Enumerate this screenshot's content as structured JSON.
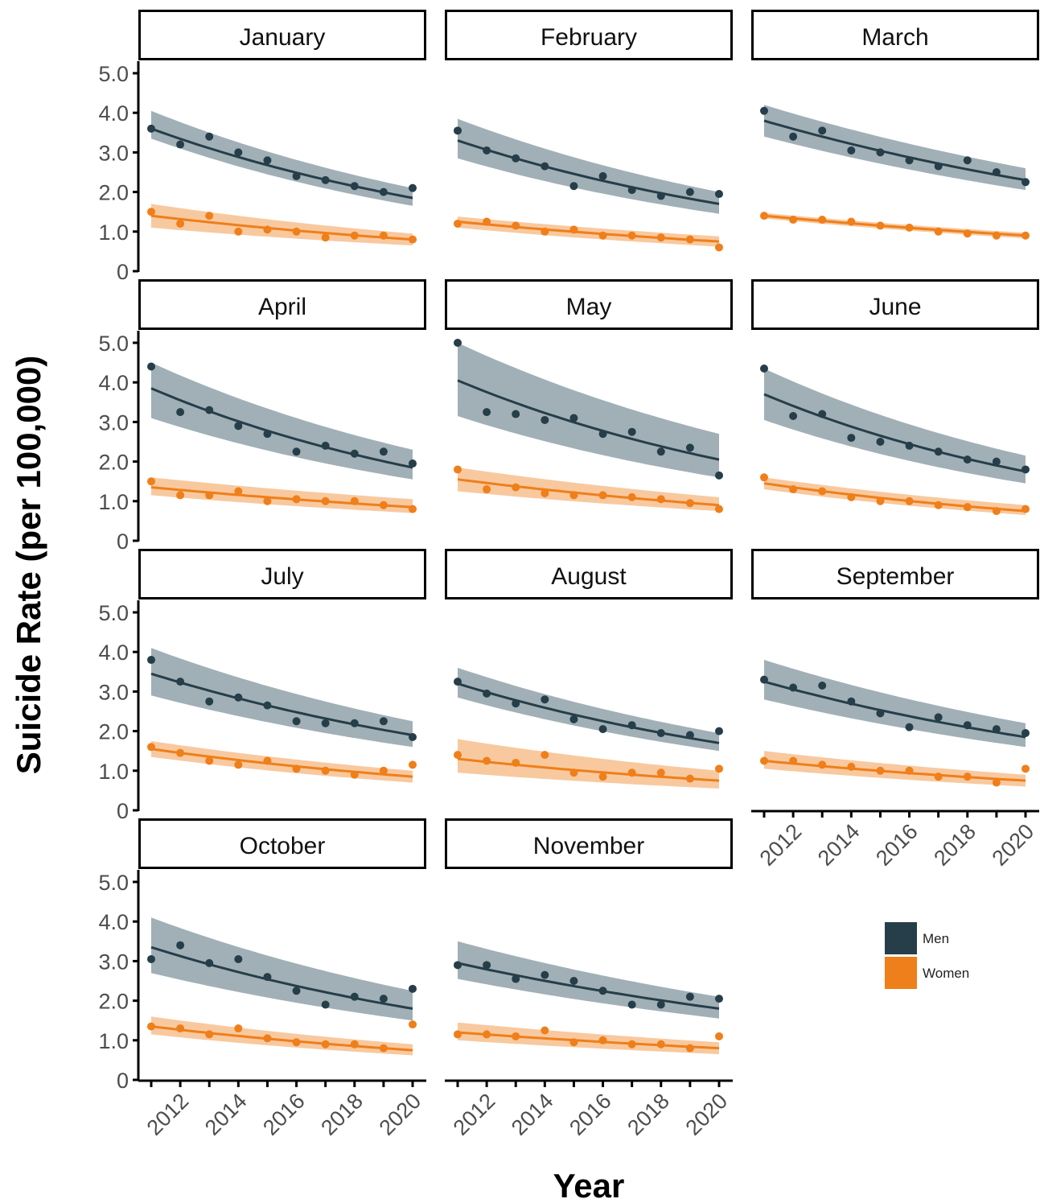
{
  "chart_data": {
    "type": "scatter",
    "facet": "month",
    "xlabel": "Year",
    "ylabel": "Suicide Rate (per 100,000)",
    "x_ticks": [
      2012,
      2014,
      2016,
      2018,
      2020
    ],
    "y_ticks": [
      "0",
      "1.0",
      "2.0",
      "3.0",
      "4.0",
      "5.0"
    ],
    "ylim": [
      0,
      5
    ],
    "xlim": [
      2011,
      2020
    ],
    "grid": false,
    "legend_position": "right",
    "x": [
      2011,
      2012,
      2013,
      2014,
      2015,
      2016,
      2017,
      2018,
      2019,
      2020
    ],
    "series": [
      {
        "name": "Men",
        "color": "#263e49",
        "band_color": "#8a9ca4"
      },
      {
        "name": "Women",
        "color": "#ef7f1a",
        "band_color": "#f7bf8e"
      }
    ],
    "panels": [
      {
        "month": "January",
        "men": [
          3.6,
          3.2,
          3.4,
          3.0,
          2.8,
          2.4,
          2.3,
          2.15,
          2.0,
          2.1
        ],
        "men_fit": [
          3.6,
          1.85
        ],
        "men_band": [
          [
            3.35,
            4.05
          ],
          [
            1.65,
            2.1
          ]
        ],
        "women": [
          1.5,
          1.2,
          1.4,
          1.0,
          1.05,
          1.0,
          0.85,
          0.9,
          0.9,
          0.8
        ],
        "women_fit": [
          1.4,
          0.8
        ],
        "women_band": [
          [
            1.1,
            1.7
          ],
          [
            0.65,
            0.95
          ]
        ]
      },
      {
        "month": "February",
        "men": [
          3.55,
          3.05,
          2.85,
          2.65,
          2.15,
          2.4,
          2.05,
          1.9,
          2.0,
          1.95
        ],
        "men_fit": [
          3.3,
          1.7
        ],
        "men_band": [
          [
            2.85,
            3.85
          ],
          [
            1.45,
            2.0
          ]
        ],
        "women": [
          1.2,
          1.25,
          1.15,
          1.0,
          1.05,
          0.9,
          0.9,
          0.85,
          0.8,
          0.6
        ],
        "women_fit": [
          1.25,
          0.75
        ],
        "women_band": [
          [
            1.1,
            1.38
          ],
          [
            0.62,
            0.88
          ]
        ]
      },
      {
        "month": "March",
        "men": [
          4.05,
          3.4,
          3.55,
          3.05,
          3.0,
          2.8,
          2.65,
          2.8,
          2.5,
          2.25
        ],
        "men_fit": [
          3.8,
          2.3
        ],
        "men_band": [
          [
            3.4,
            4.2
          ],
          [
            2.05,
            2.6
          ]
        ],
        "women": [
          1.4,
          1.3,
          1.3,
          1.25,
          1.15,
          1.1,
          1.0,
          0.95,
          0.9,
          0.9
        ],
        "women_fit": [
          1.4,
          0.9
        ],
        "women_band": [
          [
            1.33,
            1.47
          ],
          [
            0.83,
            0.97
          ]
        ]
      },
      {
        "month": "April",
        "men": [
          4.4,
          3.25,
          3.3,
          2.9,
          2.7,
          2.25,
          2.4,
          2.2,
          2.25,
          1.95
        ],
        "men_fit": [
          3.85,
          1.85
        ],
        "men_band": [
          [
            3.1,
            4.5
          ],
          [
            1.55,
            2.3
          ]
        ],
        "women": [
          1.5,
          1.15,
          1.15,
          1.25,
          1.0,
          1.05,
          1.0,
          1.0,
          0.9,
          0.8
        ],
        "women_fit": [
          1.35,
          0.85
        ],
        "women_band": [
          [
            1.15,
            1.6
          ],
          [
            0.7,
            1.05
          ]
        ]
      },
      {
        "month": "May",
        "men": [
          5.0,
          3.25,
          3.2,
          3.05,
          3.1,
          2.7,
          2.75,
          2.25,
          2.35,
          1.65
        ],
        "men_fit": [
          4.05,
          2.05
        ],
        "men_band": [
          [
            3.15,
            5.0
          ],
          [
            1.6,
            2.7
          ]
        ],
        "women": [
          1.8,
          1.3,
          1.35,
          1.2,
          1.15,
          1.15,
          1.1,
          1.05,
          0.95,
          0.8
        ],
        "women_fit": [
          1.55,
          0.9
        ],
        "women_band": [
          [
            1.25,
            1.85
          ],
          [
            0.75,
            1.1
          ]
        ]
      },
      {
        "month": "June",
        "men": [
          4.35,
          3.15,
          3.2,
          2.6,
          2.5,
          2.4,
          2.25,
          2.05,
          2.0,
          1.8
        ],
        "men_fit": [
          3.7,
          1.75
        ],
        "men_band": [
          [
            3.05,
            4.35
          ],
          [
            1.45,
            2.15
          ]
        ],
        "women": [
          1.6,
          1.3,
          1.25,
          1.1,
          1.0,
          1.0,
          0.9,
          0.85,
          0.75,
          0.8
        ],
        "women_fit": [
          1.45,
          0.75
        ],
        "women_band": [
          [
            1.3,
            1.6
          ],
          [
            0.65,
            0.9
          ]
        ]
      },
      {
        "month": "July",
        "men": [
          3.8,
          3.25,
          2.75,
          2.85,
          2.65,
          2.25,
          2.2,
          2.2,
          2.25,
          1.85
        ],
        "men_fit": [
          3.45,
          1.9
        ],
        "men_band": [
          [
            2.9,
            4.1
          ],
          [
            1.6,
            2.25
          ]
        ],
        "women": [
          1.6,
          1.45,
          1.25,
          1.15,
          1.25,
          1.05,
          1.0,
          0.9,
          1.0,
          1.15
        ],
        "women_fit": [
          1.55,
          0.85
        ],
        "women_band": [
          [
            1.35,
            1.75
          ],
          [
            0.7,
            1.0
          ]
        ]
      },
      {
        "month": "August",
        "men": [
          3.25,
          2.95,
          2.7,
          2.8,
          2.3,
          2.05,
          2.15,
          1.95,
          1.9,
          2.0
        ],
        "men_fit": [
          3.2,
          1.7
        ],
        "men_band": [
          [
            2.85,
            3.6
          ],
          [
            1.5,
            1.95
          ]
        ],
        "women": [
          1.4,
          1.25,
          1.2,
          1.4,
          0.95,
          0.85,
          0.95,
          0.95,
          0.8,
          1.05
        ],
        "women_fit": [
          1.3,
          0.75
        ],
        "women_band": [
          [
            0.95,
            1.8
          ],
          [
            0.55,
            1.0
          ]
        ]
      },
      {
        "month": "September",
        "men": [
          3.3,
          3.1,
          3.15,
          2.75,
          2.45,
          2.1,
          2.35,
          2.15,
          2.05,
          1.95
        ],
        "men_fit": [
          3.25,
          1.85
        ],
        "men_band": [
          [
            2.8,
            3.8
          ],
          [
            1.6,
            2.2
          ]
        ],
        "women": [
          1.25,
          1.25,
          1.15,
          1.1,
          1.0,
          1.0,
          0.85,
          0.85,
          0.7,
          1.05
        ],
        "women_fit": [
          1.25,
          0.75
        ],
        "women_band": [
          [
            1.05,
            1.5
          ],
          [
            0.6,
            0.9
          ]
        ]
      },
      {
        "month": "October",
        "men": [
          3.05,
          3.4,
          2.95,
          3.05,
          2.6,
          2.25,
          1.9,
          2.1,
          2.05,
          2.3
        ],
        "men_fit": [
          3.35,
          1.8
        ],
        "men_band": [
          [
            2.7,
            4.1
          ],
          [
            1.5,
            2.25
          ]
        ],
        "women": [
          1.35,
          1.3,
          1.15,
          1.3,
          1.05,
          0.95,
          0.9,
          0.9,
          0.8,
          1.4
        ],
        "women_fit": [
          1.35,
          0.75
        ],
        "women_band": [
          [
            1.15,
            1.6
          ],
          [
            0.62,
            0.9
          ]
        ]
      },
      {
        "month": "November",
        "men": [
          2.9,
          2.9,
          2.55,
          2.65,
          2.5,
          2.25,
          1.9,
          1.9,
          2.1,
          2.05
        ],
        "men_fit": [
          2.95,
          1.8
        ],
        "men_band": [
          [
            2.55,
            3.5
          ],
          [
            1.55,
            2.1
          ]
        ],
        "women": [
          1.15,
          1.15,
          1.1,
          1.25,
          0.95,
          1.0,
          0.9,
          0.9,
          0.8,
          1.1
        ],
        "women_fit": [
          1.2,
          0.8
        ],
        "women_band": [
          [
            1.0,
            1.45
          ],
          [
            0.65,
            0.95
          ]
        ]
      }
    ]
  }
}
